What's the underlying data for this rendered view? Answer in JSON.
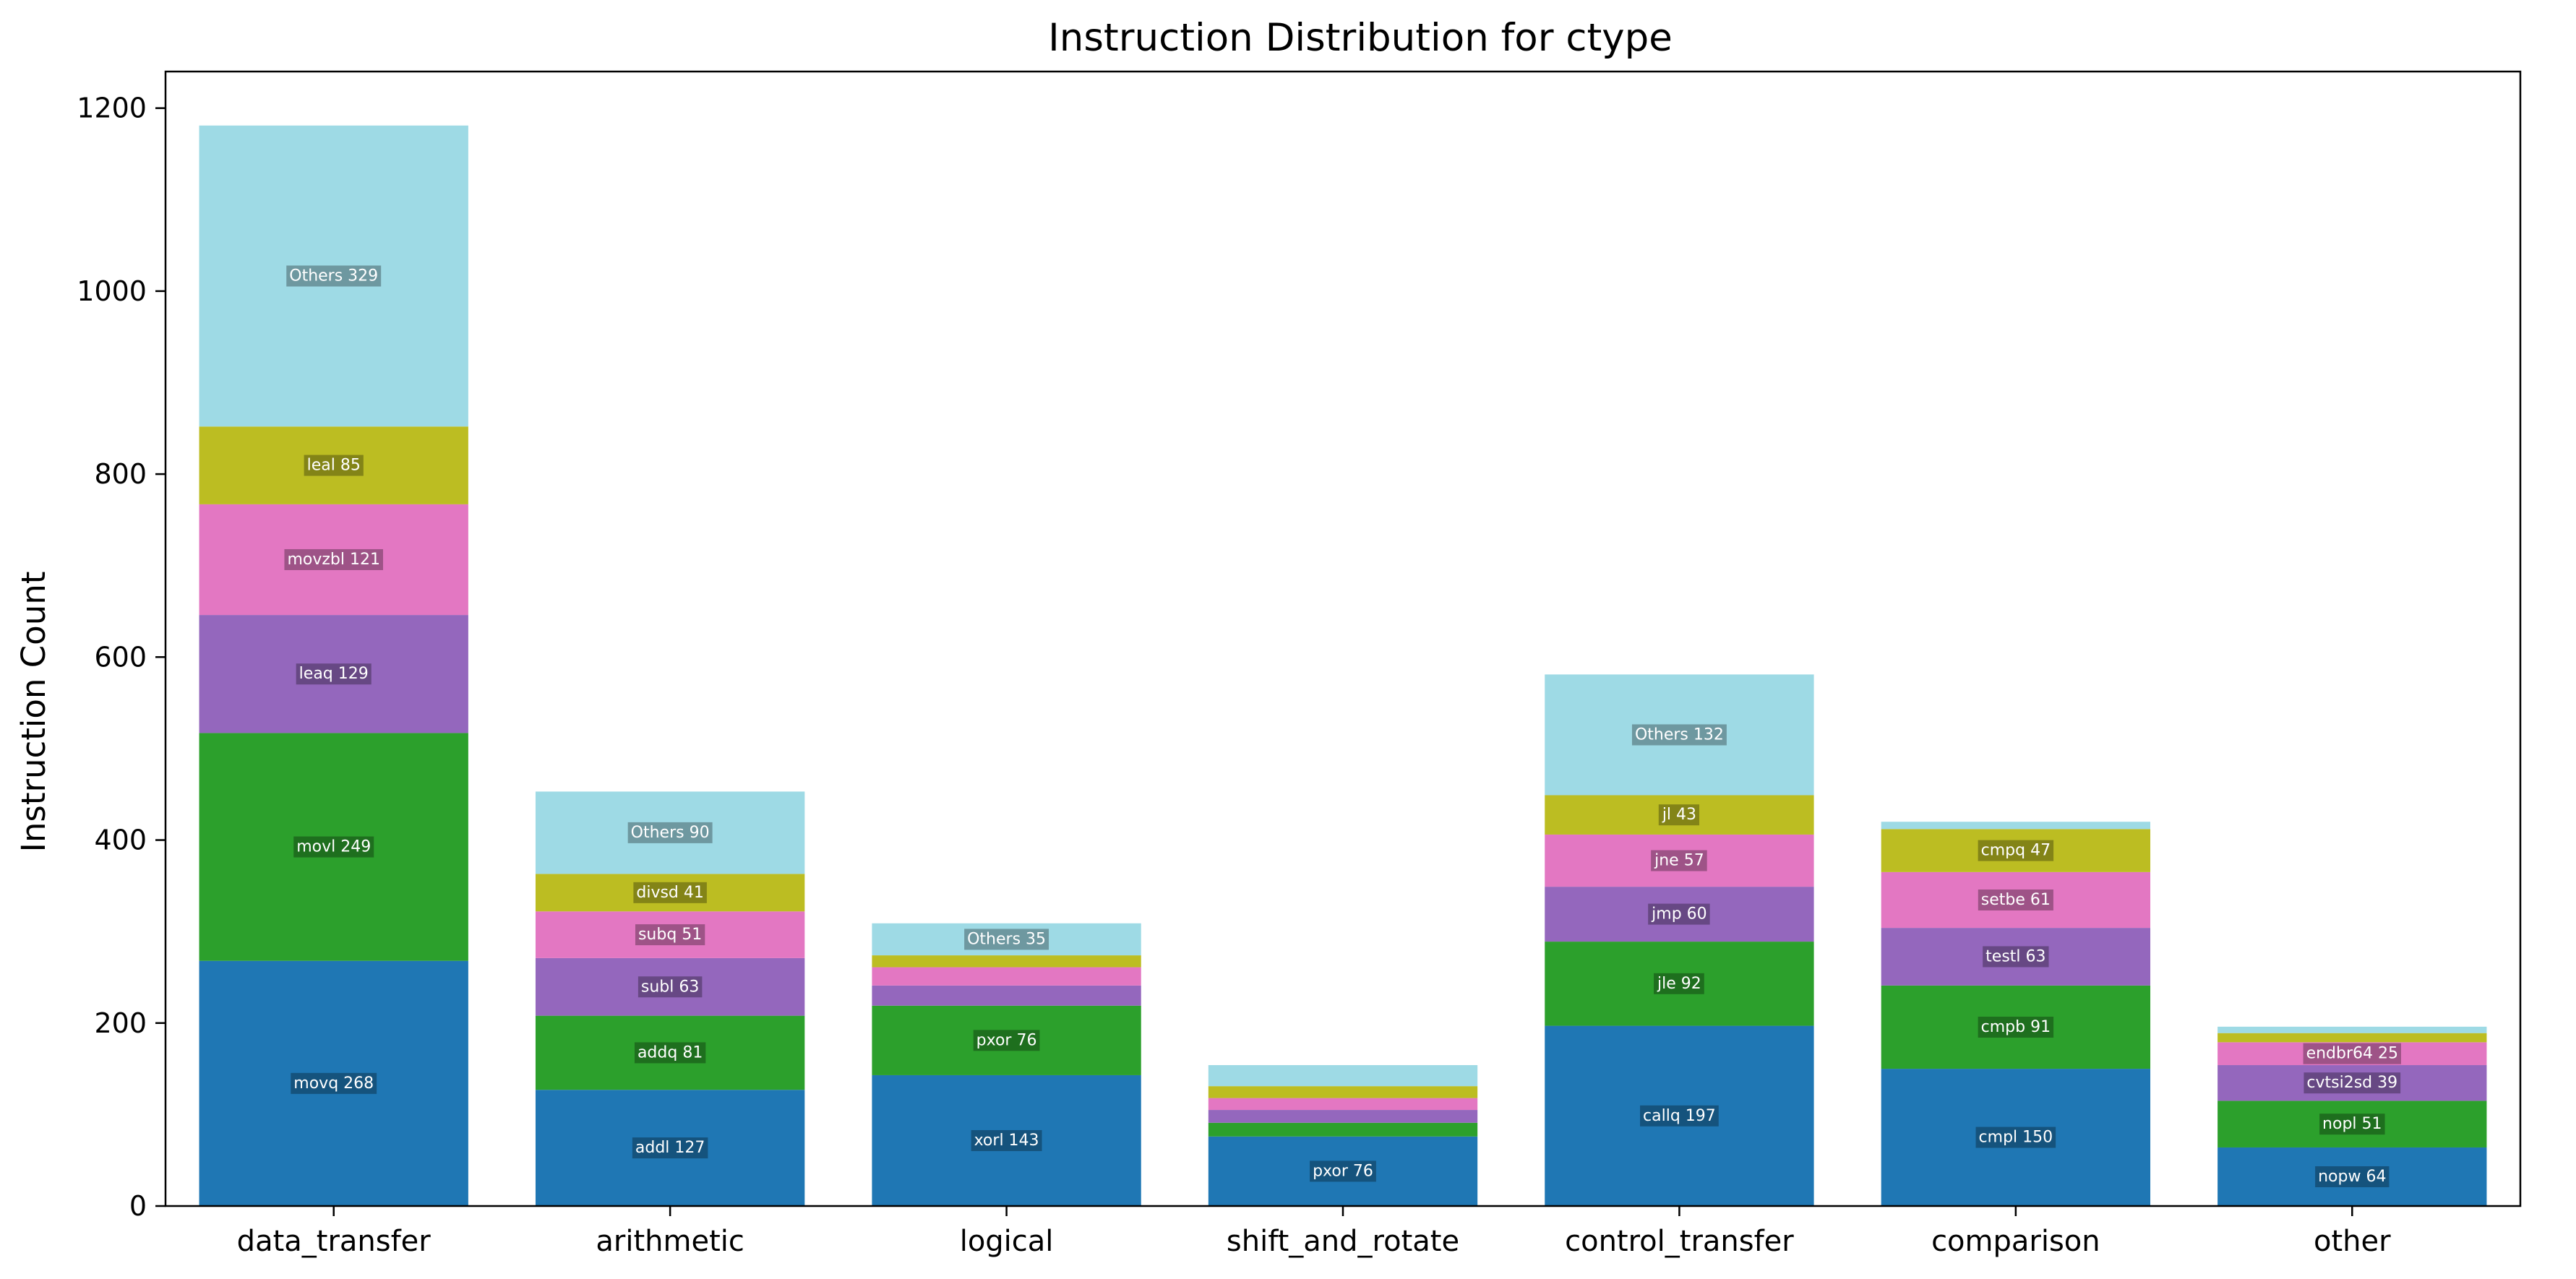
{
  "chart_data": {
    "type": "bar",
    "stacked": true,
    "title": "Instruction Distribution for ctype",
    "xlabel": "",
    "ylabel": "Instruction Count",
    "ylim": [
      0,
      1240
    ],
    "yticks": [
      0,
      200,
      400,
      600,
      800,
      1000,
      1200
    ],
    "grid": false,
    "legend": "none",
    "categories": [
      "data_transfer",
      "arithmetic",
      "logical",
      "shift_and_rotate",
      "control_transfer",
      "comparison",
      "other"
    ],
    "layer_colors": [
      "#1f77b4",
      "#2ca02c",
      "#9467bd",
      "#e377c2",
      "#bcbd22",
      "#9edae5"
    ],
    "stacks": [
      {
        "category": "data_transfer",
        "segments": [
          {
            "label": "movq 268",
            "value": 268
          },
          {
            "label": "movl 249",
            "value": 249
          },
          {
            "label": "leaq 129",
            "value": 129
          },
          {
            "label": "movzbl 121",
            "value": 121
          },
          {
            "label": "leal 85",
            "value": 85
          },
          {
            "label": "Others 329",
            "value": 329
          }
        ]
      },
      {
        "category": "arithmetic",
        "segments": [
          {
            "label": "addl 127",
            "value": 127
          },
          {
            "label": "addq 81",
            "value": 81
          },
          {
            "label": "subl 63",
            "value": 63
          },
          {
            "label": "subq 51",
            "value": 51
          },
          {
            "label": "divsd 41",
            "value": 41
          },
          {
            "label": "Others 90",
            "value": 90
          }
        ]
      },
      {
        "category": "logical",
        "segments": [
          {
            "label": "xorl 143",
            "value": 143
          },
          {
            "label": "pxor 76",
            "value": 76
          },
          {
            "label": "",
            "value": 22
          },
          {
            "label": "",
            "value": 20
          },
          {
            "label": "",
            "value": 13
          },
          {
            "label": "Others 35",
            "value": 35
          }
        ]
      },
      {
        "category": "shift_and_rotate",
        "segments": [
          {
            "label": "pxor 76",
            "value": 76
          },
          {
            "label": "",
            "value": 15
          },
          {
            "label": "",
            "value": 14
          },
          {
            "label": "",
            "value": 13
          },
          {
            "label": "",
            "value": 13
          },
          {
            "label": "",
            "value": 23
          }
        ]
      },
      {
        "category": "control_transfer",
        "segments": [
          {
            "label": "callq 197",
            "value": 197
          },
          {
            "label": "jle 92",
            "value": 92
          },
          {
            "label": "jmp 60",
            "value": 60
          },
          {
            "label": "jne 57",
            "value": 57
          },
          {
            "label": "jl 43",
            "value": 43
          },
          {
            "label": "Others 132",
            "value": 132
          }
        ]
      },
      {
        "category": "comparison",
        "segments": [
          {
            "label": "cmpl 150",
            "value": 150
          },
          {
            "label": "cmpb 91",
            "value": 91
          },
          {
            "label": "testl 63",
            "value": 63
          },
          {
            "label": "setbe 61",
            "value": 61
          },
          {
            "label": "cmpq 47",
            "value": 47
          },
          {
            "label": "",
            "value": 8
          }
        ]
      },
      {
        "category": "other",
        "segments": [
          {
            "label": "nopw 64",
            "value": 64
          },
          {
            "label": "nopl 51",
            "value": 51
          },
          {
            "label": "cvtsi2sd 39",
            "value": 39
          },
          {
            "label": "endbr64 25",
            "value": 25
          },
          {
            "label": "",
            "value": 10
          },
          {
            "label": "",
            "value": 7
          }
        ]
      }
    ]
  }
}
